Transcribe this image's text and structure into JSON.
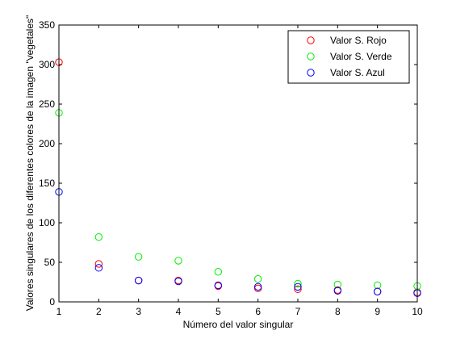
{
  "chart_data": {
    "type": "scatter",
    "xlabel": "Número del valor singular",
    "ylabel": "Valores singulares de los diferentes colores de la imagen \"vegetales\"",
    "xlim": [
      1,
      10
    ],
    "ylim": [
      0,
      350
    ],
    "x_ticks": [
      "1",
      "2",
      "3",
      "4",
      "5",
      "6",
      "7",
      "8",
      "9",
      "10"
    ],
    "y_ticks": [
      "0",
      "50",
      "100",
      "150",
      "200",
      "250",
      "300",
      "350"
    ],
    "grid": false,
    "legend_position": "top-right",
    "marker": "open-circle",
    "x": [
      1,
      2,
      3,
      4,
      5,
      6,
      7,
      8,
      9,
      10
    ],
    "series": [
      {
        "name": "Valor S. Rojo",
        "color": "#ff0000",
        "values": [
          303,
          48,
          27,
          27,
          20,
          17,
          16,
          15,
          13,
          12
        ]
      },
      {
        "name": "Valor S. Verde",
        "color": "#00ee00",
        "values": [
          239,
          82,
          57,
          52,
          38,
          29,
          23,
          22,
          21,
          20
        ]
      },
      {
        "name": "Valor S. Azul",
        "color": "#0000ff",
        "values": [
          139,
          43,
          27,
          26,
          21,
          19,
          19,
          14,
          13,
          11
        ]
      }
    ]
  }
}
